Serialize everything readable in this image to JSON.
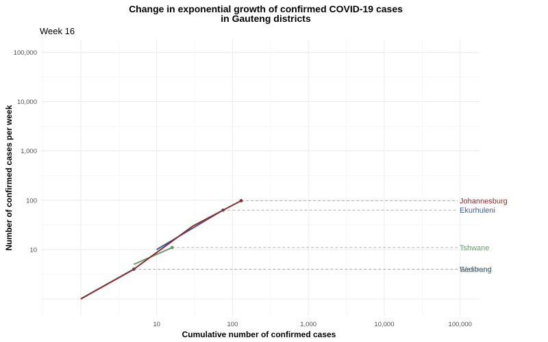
{
  "chart_data": {
    "type": "line",
    "title_line1": "Change in exponential growth of confirmed COVID-19 cases",
    "title_line2": "in Gauteng districts",
    "subtitle": "Week 16",
    "xlabel": "Cumulative number of confirmed cases",
    "ylabel": "Number of confirmed cases per week",
    "x_scale": "log",
    "y_scale": "log",
    "xlim": [
      0.3,
      180000
    ],
    "ylim": [
      0.45,
      180000
    ],
    "x_ticks": [
      10,
      100,
      1000,
      10000,
      100000
    ],
    "x_tick_labels": [
      "10",
      "100",
      "1,000",
      "10,000",
      "100,000"
    ],
    "y_ticks": [
      10,
      100,
      1000,
      10000,
      100000
    ],
    "y_tick_labels": [
      "10",
      "100",
      "1,000",
      "10,000",
      "100,000"
    ],
    "grid": true,
    "series": [
      {
        "name": "Westrand",
        "color": "#7b7b7b",
        "x": [
          1,
          5
        ],
        "y": [
          1,
          4
        ]
      },
      {
        "name": "Sedibeng",
        "color": "#546b78",
        "x": [
          1,
          5
        ],
        "y": [
          1,
          4
        ]
      },
      {
        "name": "Tshwane",
        "color": "#6a9a6a",
        "x": [
          5,
          16
        ],
        "y": [
          5,
          11
        ]
      },
      {
        "name": "Ekurhuleni",
        "color": "#3b5b9a",
        "x": [
          10,
          75
        ],
        "y": [
          10,
          63
        ]
      },
      {
        "name": "Johannesburg",
        "color": "#8b2b2b",
        "x": [
          1,
          5,
          30,
          130
        ],
        "y": [
          1,
          4,
          30,
          98
        ]
      }
    ],
    "labels": [
      {
        "text": "Johannesburg",
        "y": 98,
        "color": "#8b2b2b"
      },
      {
        "text": "Ekurhuleni",
        "y": 63,
        "color": "#3b5b9a"
      },
      {
        "text": "Tshwane",
        "y": 11,
        "color": "#6a9a6a"
      },
      {
        "text": "Westrand",
        "y": 4,
        "color": "#7b7b7b"
      },
      {
        "text": "Sedibeng",
        "y": 4,
        "color": "#546b78"
      }
    ]
  }
}
